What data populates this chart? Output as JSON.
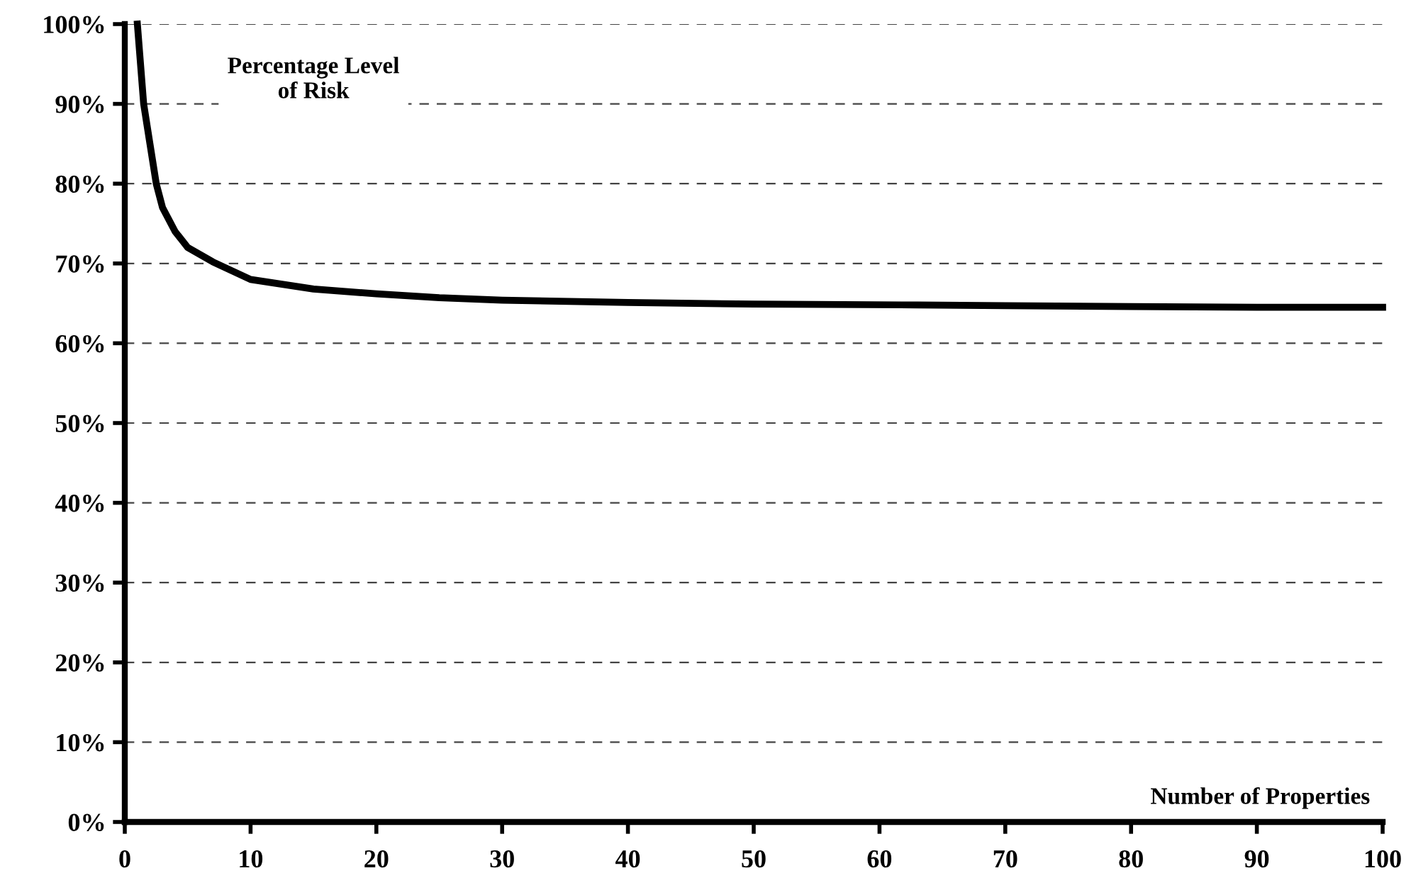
{
  "chart_data": {
    "type": "line",
    "x": [
      1,
      1.5,
      2,
      2.5,
      3,
      4,
      5,
      7,
      10,
      15,
      20,
      25,
      30,
      40,
      50,
      63,
      70,
      80,
      90,
      100
    ],
    "series": [
      {
        "color": "#000000",
        "values": [
          100,
          90,
          85,
          80,
          77,
          74,
          72,
          70.2,
          68,
          66.8,
          66.2,
          65.7,
          65.4,
          65.1,
          64.9,
          64.8,
          64.7,
          64.6,
          64.5,
          64.5
        ]
      }
    ],
    "xlim": [
      0,
      100
    ],
    "xticks": [
      0,
      10,
      20,
      30,
      40,
      50,
      60,
      70,
      80,
      90,
      100
    ],
    "ylim": [
      0,
      100
    ],
    "yticks": [
      {
        "value": 0,
        "label": "0%"
      },
      {
        "value": 10,
        "label": "10%"
      },
      {
        "value": 20,
        "label": "20%"
      },
      {
        "value": 30,
        "label": "30%"
      },
      {
        "value": 40,
        "label": "40%"
      },
      {
        "value": 50,
        "label": "50%"
      },
      {
        "value": 60,
        "label": "60%"
      },
      {
        "value": 70,
        "label": "70%"
      },
      {
        "value": 80,
        "label": "80%"
      },
      {
        "value": 90,
        "label": "90%"
      },
      {
        "value": 100,
        "label": "100%"
      }
    ],
    "grid": "y",
    "legend": false,
    "marker": "none",
    "line_style": "solid",
    "annotations": [
      "Percentage Level\nof Risk",
      "Number of Properties"
    ]
  }
}
